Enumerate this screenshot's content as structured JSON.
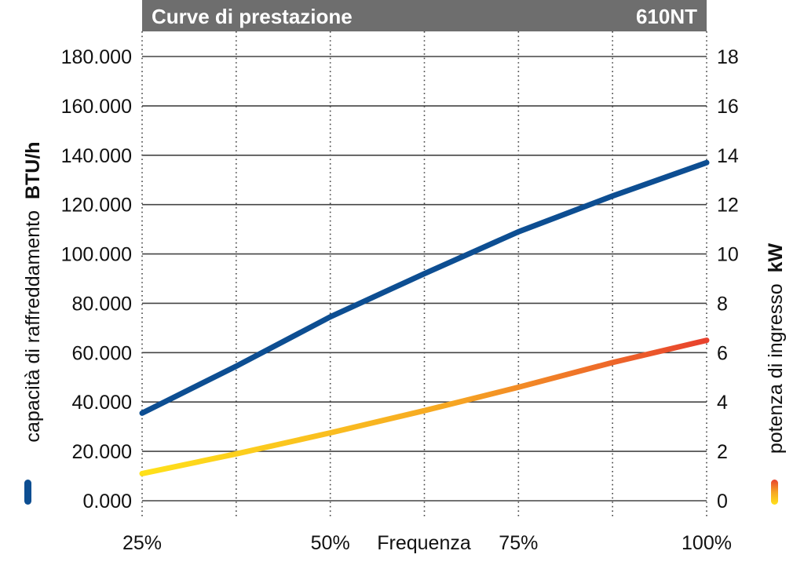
{
  "chart_data": {
    "type": "line",
    "title": "Curve di prestazione",
    "model": "610NT",
    "xlabel": "Frequenza",
    "x": [
      "25%",
      "50%",
      "75%",
      "100%"
    ],
    "x_values": [
      25,
      37.5,
      50,
      62.5,
      75,
      87.5,
      100
    ],
    "y_left": {
      "label_prefix": "capacità di raffreddamento",
      "label_unit": "BTU/h",
      "ticks": [
        "0.000",
        "20.000",
        "40.000",
        "60.000",
        "80.000",
        "100.000",
        "120.000",
        "140.000",
        "160.000",
        "180.000"
      ],
      "range": [
        0,
        180000
      ]
    },
    "y_right": {
      "label_prefix": "potenza di ingresso",
      "label_unit": "kW",
      "ticks": [
        "0",
        "2",
        "4",
        "6",
        "8",
        "10",
        "12",
        "14",
        "16",
        "18"
      ],
      "range": [
        0,
        18
      ]
    },
    "series": [
      {
        "axis": "left",
        "color": "#0d4e92",
        "x": [
          25,
          37.5,
          50,
          62.5,
          75,
          87.5,
          100
        ],
        "values": [
          35500,
          54500,
          74500,
          92000,
          109000,
          123500,
          137000
        ]
      },
      {
        "axis": "right",
        "colors": [
          "#ffe11a",
          "#f6a623",
          "#e8412d"
        ],
        "x": [
          25,
          37.5,
          50,
          62.5,
          75,
          87.5,
          100
        ],
        "values": [
          1.1,
          1.9,
          2.75,
          3.65,
          4.6,
          5.6,
          6.5
        ]
      }
    ],
    "grid": true,
    "legend": "left and right vertical swatches"
  },
  "colors": {
    "header_bg": "#6e6e6e",
    "grid": "#444444",
    "blue": "#0d4e92",
    "yellow": "#ffe11a",
    "orange": "#f6a623",
    "red": "#e8412d"
  }
}
